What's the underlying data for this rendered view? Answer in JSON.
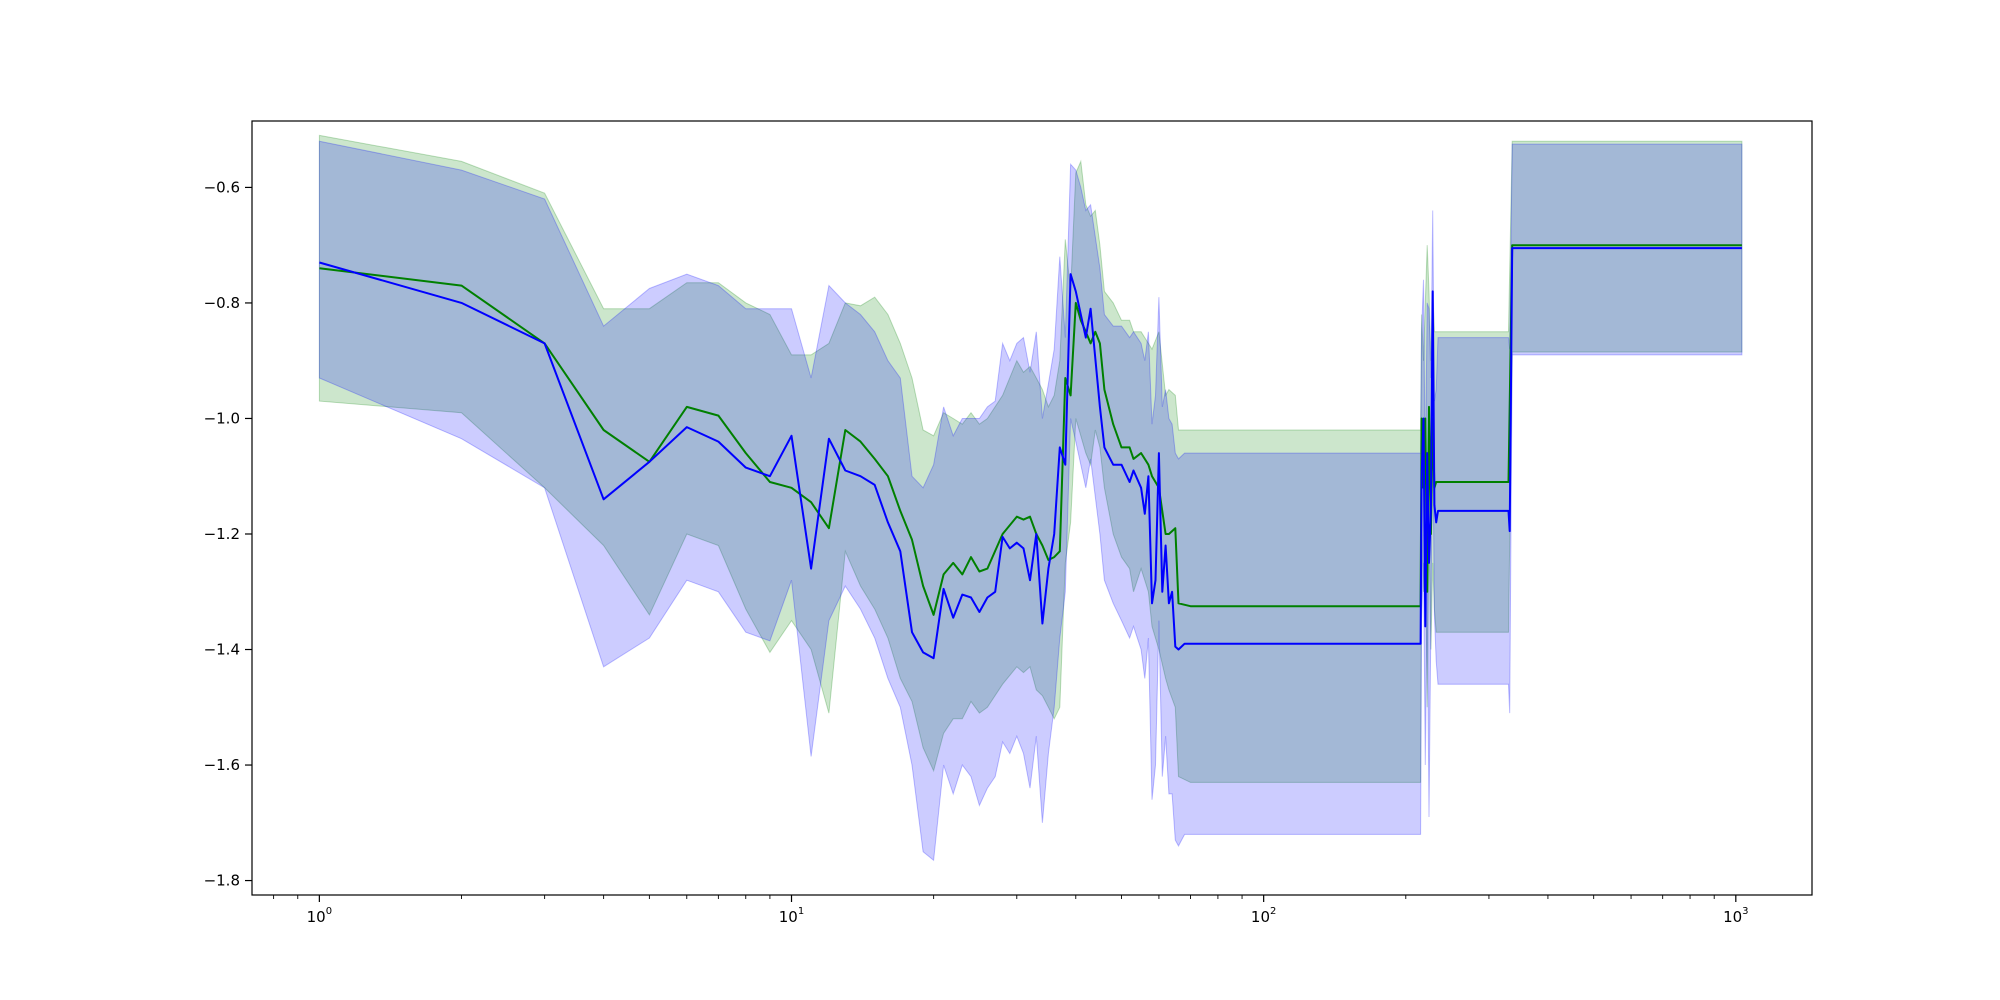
{
  "chart_data": {
    "type": "line",
    "title": "",
    "xlabel": "",
    "ylabel": "",
    "xscale": "log",
    "xlim": [
      0.72,
      1450
    ],
    "ylim": [
      -1.825,
      -0.485
    ],
    "grid": false,
    "legend": "none",
    "x_ticks": [
      {
        "value": 1,
        "base": "10",
        "exp": "0"
      },
      {
        "value": 10,
        "base": "10",
        "exp": "1"
      },
      {
        "value": 100,
        "base": "10",
        "exp": "2"
      },
      {
        "value": 1000,
        "base": "10",
        "exp": "3"
      }
    ],
    "y_ticks": [
      {
        "value": -0.6,
        "label": "−0.6"
      },
      {
        "value": -0.8,
        "label": "−0.8"
      },
      {
        "value": -1.0,
        "label": "−1.0"
      },
      {
        "value": -1.2,
        "label": "−1.2"
      },
      {
        "value": -1.4,
        "label": "−1.4"
      },
      {
        "value": -1.6,
        "label": "−1.6"
      },
      {
        "value": -1.8,
        "label": "−1.8"
      }
    ],
    "series": [
      {
        "color": "#008000",
        "band_color": "#008000",
        "points": [
          [
            1,
            -0.74,
            -0.97,
            -0.51
          ],
          [
            2,
            -0.77,
            -0.99,
            -0.555
          ],
          [
            3,
            -0.87,
            -1.12,
            -0.61
          ],
          [
            4,
            -1.02,
            -1.22,
            -0.81
          ],
          [
            5,
            -1.075,
            -1.34,
            -0.81
          ],
          [
            6,
            -0.98,
            -1.2,
            -0.765
          ],
          [
            7,
            -0.995,
            -1.22,
            -0.765
          ],
          [
            8,
            -1.06,
            -1.33,
            -0.8
          ],
          [
            9,
            -1.11,
            -1.405,
            -0.82
          ],
          [
            10,
            -1.12,
            -1.35,
            -0.89
          ],
          [
            11,
            -1.145,
            -1.4,
            -0.89
          ],
          [
            12,
            -1.19,
            -1.51,
            -0.87
          ],
          [
            13,
            -1.02,
            -1.23,
            -0.8
          ],
          [
            14,
            -1.04,
            -1.29,
            -0.805
          ],
          [
            15,
            -1.07,
            -1.33,
            -0.79
          ],
          [
            16,
            -1.1,
            -1.38,
            -0.82
          ],
          [
            17,
            -1.16,
            -1.45,
            -0.87
          ],
          [
            18,
            -1.21,
            -1.49,
            -0.93
          ],
          [
            19,
            -1.29,
            -1.57,
            -1.02
          ],
          [
            20,
            -1.34,
            -1.61,
            -1.03
          ],
          [
            21,
            -1.27,
            -1.545,
            -0.99
          ],
          [
            22,
            -1.25,
            -1.52,
            -1.0
          ],
          [
            23,
            -1.27,
            -1.52,
            -1.01
          ],
          [
            24,
            -1.24,
            -1.49,
            -0.99
          ],
          [
            25,
            -1.265,
            -1.51,
            -1.01
          ],
          [
            26,
            -1.26,
            -1.5,
            -1.0
          ],
          [
            28,
            -1.2,
            -1.46,
            -0.96
          ],
          [
            30,
            -1.17,
            -1.43,
            -0.9
          ],
          [
            31,
            -1.175,
            -1.44,
            -0.92
          ],
          [
            32,
            -1.17,
            -1.43,
            -0.91
          ],
          [
            33,
            -1.2,
            -1.47,
            -0.93
          ],
          [
            34,
            -1.22,
            -1.48,
            -0.95
          ],
          [
            35,
            -1.245,
            -1.5,
            -0.98
          ],
          [
            36,
            -1.24,
            -1.52,
            -0.96
          ],
          [
            37,
            -1.23,
            -1.5,
            -0.9
          ],
          [
            38,
            -0.93,
            -1.25,
            -0.69
          ],
          [
            39,
            -0.96,
            -1.18,
            -0.78
          ],
          [
            40,
            -0.8,
            -1.0,
            -0.575
          ],
          [
            41,
            -0.83,
            -1.03,
            -0.555
          ],
          [
            42,
            -0.85,
            -1.06,
            -0.63
          ],
          [
            43,
            -0.87,
            -1.08,
            -0.65
          ],
          [
            44,
            -0.85,
            -1.02,
            -0.64
          ],
          [
            45,
            -0.87,
            -1.05,
            -0.7
          ],
          [
            46,
            -0.95,
            -1.12,
            -0.78
          ],
          [
            48,
            -1.01,
            -1.2,
            -0.8
          ],
          [
            50,
            -1.05,
            -1.24,
            -0.83
          ],
          [
            52,
            -1.05,
            -1.26,
            -0.83
          ],
          [
            53,
            -1.07,
            -1.3,
            -0.85
          ],
          [
            55,
            -1.06,
            -1.26,
            -0.85
          ],
          [
            57,
            -1.08,
            -1.3,
            -0.87
          ],
          [
            58,
            -1.1,
            -1.36,
            -0.88
          ],
          [
            60,
            -1.12,
            -1.4,
            -0.85
          ],
          [
            62,
            -1.2,
            -1.45,
            -0.96
          ],
          [
            63,
            -1.2,
            -1.47,
            -0.95
          ],
          [
            65,
            -1.19,
            -1.5,
            -0.96
          ],
          [
            66,
            -1.32,
            -1.62,
            -1.02
          ],
          [
            70,
            -1.325,
            -1.63,
            -1.02
          ],
          [
            215,
            -1.325,
            -1.63,
            -1.02
          ],
          [
            216,
            -1.0,
            -1.2,
            -0.82
          ],
          [
            218,
            -1.12,
            -1.3,
            -0.9
          ],
          [
            220,
            -1.0,
            -1.2,
            -0.8
          ],
          [
            222,
            -1.3,
            -1.5,
            -0.7
          ],
          [
            224,
            -0.98,
            -1.2,
            -0.78
          ],
          [
            226,
            -1.2,
            -1.4,
            -0.9
          ],
          [
            228,
            -1.0,
            -1.25,
            -0.78
          ],
          [
            230,
            -1.12,
            -1.33,
            -0.85
          ],
          [
            232,
            -1.11,
            -1.37,
            -0.85
          ],
          [
            330,
            -1.11,
            -1.37,
            -0.85
          ],
          [
            336,
            -0.7,
            -0.885,
            -0.52
          ],
          [
            1030,
            -0.7,
            -0.885,
            -0.52
          ]
        ]
      },
      {
        "color": "#0000ff",
        "band_color": "#0000ff",
        "points": [
          [
            1,
            -0.73,
            -0.93,
            -0.52
          ],
          [
            2,
            -0.8,
            -1.035,
            -0.57
          ],
          [
            3,
            -0.87,
            -1.12,
            -0.62
          ],
          [
            4,
            -1.14,
            -1.43,
            -0.84
          ],
          [
            5,
            -1.075,
            -1.38,
            -0.775
          ],
          [
            6,
            -1.015,
            -1.28,
            -0.75
          ],
          [
            7,
            -1.04,
            -1.3,
            -0.77
          ],
          [
            8,
            -1.085,
            -1.37,
            -0.81
          ],
          [
            9,
            -1.1,
            -1.385,
            -0.81
          ],
          [
            10,
            -1.03,
            -1.28,
            -0.81
          ],
          [
            11,
            -1.26,
            -1.585,
            -0.93
          ],
          [
            12,
            -1.035,
            -1.35,
            -0.77
          ],
          [
            13,
            -1.09,
            -1.29,
            -0.8
          ],
          [
            14,
            -1.1,
            -1.33,
            -0.82
          ],
          [
            15,
            -1.115,
            -1.38,
            -0.85
          ],
          [
            16,
            -1.18,
            -1.45,
            -0.9
          ],
          [
            17,
            -1.23,
            -1.5,
            -0.93
          ],
          [
            18,
            -1.37,
            -1.6,
            -1.1
          ],
          [
            19,
            -1.405,
            -1.75,
            -1.12
          ],
          [
            20,
            -1.415,
            -1.765,
            -1.08
          ],
          [
            21,
            -1.295,
            -1.6,
            -0.98
          ],
          [
            22,
            -1.345,
            -1.65,
            -1.03
          ],
          [
            23,
            -1.305,
            -1.6,
            -1.0
          ],
          [
            24,
            -1.31,
            -1.62,
            -1.0
          ],
          [
            25,
            -1.335,
            -1.67,
            -1.0
          ],
          [
            26,
            -1.31,
            -1.64,
            -0.98
          ],
          [
            27,
            -1.3,
            -1.62,
            -0.97
          ],
          [
            28,
            -1.205,
            -1.56,
            -0.87
          ],
          [
            29,
            -1.225,
            -1.58,
            -0.9
          ],
          [
            30,
            -1.215,
            -1.55,
            -0.87
          ],
          [
            31,
            -1.225,
            -1.58,
            -0.86
          ],
          [
            32,
            -1.28,
            -1.64,
            -0.92
          ],
          [
            33,
            -1.2,
            -1.55,
            -0.85
          ],
          [
            34,
            -1.355,
            -1.7,
            -1.0
          ],
          [
            35,
            -1.26,
            -1.58,
            -0.94
          ],
          [
            36,
            -1.2,
            -1.5,
            -0.88
          ],
          [
            37,
            -1.05,
            -1.38,
            -0.72
          ],
          [
            38,
            -1.08,
            -1.3,
            -0.86
          ],
          [
            39,
            -0.75,
            -1.0,
            -0.56
          ],
          [
            40,
            -0.78,
            -1.04,
            -0.57
          ],
          [
            41,
            -0.82,
            -1.08,
            -0.6
          ],
          [
            42,
            -0.86,
            -1.12,
            -0.64
          ],
          [
            43,
            -0.81,
            -1.07,
            -0.63
          ],
          [
            45,
            -0.98,
            -1.2,
            -0.74
          ],
          [
            46,
            -1.05,
            -1.28,
            -0.82
          ],
          [
            48,
            -1.08,
            -1.32,
            -0.84
          ],
          [
            50,
            -1.08,
            -1.35,
            -0.84
          ],
          [
            52,
            -1.11,
            -1.38,
            -0.86
          ],
          [
            53,
            -1.09,
            -1.36,
            -0.85
          ],
          [
            55,
            -1.12,
            -1.4,
            -0.87
          ],
          [
            56,
            -1.165,
            -1.45,
            -0.9
          ],
          [
            57,
            -1.1,
            -1.38,
            -0.85
          ],
          [
            58,
            -1.32,
            -1.66,
            -1.01
          ],
          [
            59,
            -1.28,
            -1.6,
            -0.96
          ],
          [
            60,
            -1.06,
            -1.35,
            -0.79
          ],
          [
            61,
            -1.3,
            -1.62,
            -0.98
          ],
          [
            62,
            -1.22,
            -1.55,
            -0.95
          ],
          [
            63,
            -1.32,
            -1.65,
            -1.0
          ],
          [
            64,
            -1.3,
            -1.65,
            -1.01
          ],
          [
            65,
            -1.395,
            -1.73,
            -1.06
          ],
          [
            66,
            -1.4,
            -1.74,
            -1.07
          ],
          [
            68,
            -1.39,
            -1.72,
            -1.06
          ],
          [
            215,
            -1.39,
            -1.72,
            -1.06
          ],
          [
            216,
            -1.1,
            -1.35,
            -0.85
          ],
          [
            218,
            -1.0,
            -1.25,
            -0.76
          ],
          [
            220,
            -1.36,
            -1.6,
            -1.1
          ],
          [
            222,
            -1.06,
            -1.3,
            -0.8
          ],
          [
            224,
            -1.25,
            -1.69,
            -0.81
          ],
          [
            226,
            -1.16,
            -1.35,
            -0.93
          ],
          [
            228,
            -0.78,
            -1.0,
            -0.64
          ],
          [
            230,
            -1.15,
            -1.34,
            -0.97
          ],
          [
            232,
            -1.18,
            -1.42,
            -0.95
          ],
          [
            234,
            -1.16,
            -1.46,
            -0.86
          ],
          [
            330,
            -1.16,
            -1.46,
            -0.86
          ],
          [
            332,
            -1.195,
            -1.51,
            -0.88
          ],
          [
            336,
            -0.705,
            -0.89,
            -0.525
          ],
          [
            1030,
            -0.705,
            -0.89,
            -0.525
          ]
        ]
      }
    ]
  }
}
